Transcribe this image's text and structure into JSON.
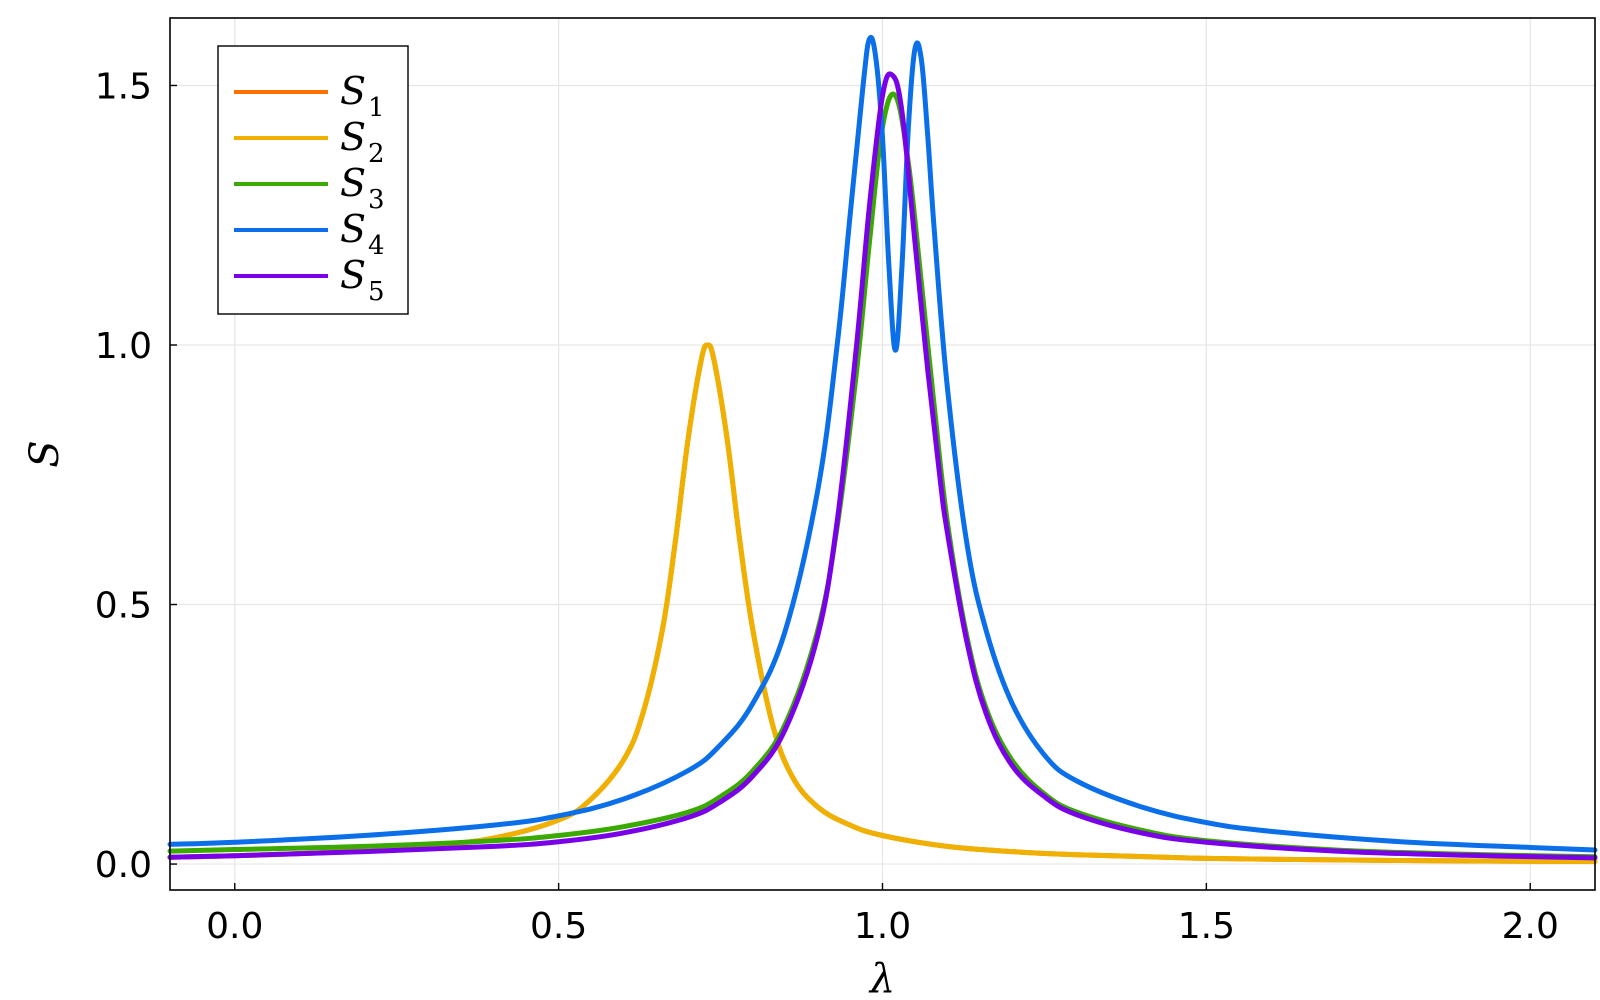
{
  "chart_data": {
    "type": "line",
    "title": "",
    "xlabel": "λ",
    "ylabel": "S",
    "xlim": [
      -0.1,
      2.1
    ],
    "ylim": [
      -0.05,
      1.63
    ],
    "xticks": [
      0.0,
      0.5,
      1.0,
      1.5,
      2.0
    ],
    "xtick_labels": [
      "0.0",
      "0.5",
      "1.0",
      "1.5",
      "2.0"
    ],
    "yticks": [
      0.0,
      0.5,
      1.0,
      1.5
    ],
    "ytick_labels": [
      "0.0",
      "0.5",
      "1.0",
      "1.5"
    ],
    "grid": true,
    "legend_position": "top-left",
    "series": [
      {
        "name": "S1",
        "label_base": "S",
        "label_sub": "1",
        "color": "#ff6f00",
        "x": [
          -0.1,
          0.0,
          0.1,
          0.2,
          0.3,
          0.4,
          0.5,
          0.55,
          0.6,
          0.63,
          0.66,
          0.68,
          0.7,
          0.72,
          0.73,
          0.74,
          0.76,
          0.78,
          0.8,
          0.83,
          0.86,
          0.9,
          0.95,
          1.0,
          1.1,
          1.2,
          1.3,
          1.5,
          1.7,
          1.9,
          2.1
        ],
        "y": [
          0.013,
          0.016,
          0.02,
          0.026,
          0.035,
          0.05,
          0.085,
          0.125,
          0.2,
          0.29,
          0.45,
          0.62,
          0.82,
          0.97,
          1.0,
          0.97,
          0.82,
          0.62,
          0.45,
          0.27,
          0.17,
          0.11,
          0.075,
          0.055,
          0.034,
          0.024,
          0.018,
          0.011,
          0.008,
          0.006,
          0.005
        ]
      },
      {
        "name": "S2",
        "label_base": "S",
        "label_sub": "2",
        "color": "#f0b000",
        "x": [
          -0.1,
          0.0,
          0.1,
          0.2,
          0.3,
          0.4,
          0.5,
          0.55,
          0.6,
          0.63,
          0.66,
          0.68,
          0.7,
          0.72,
          0.73,
          0.74,
          0.76,
          0.78,
          0.8,
          0.83,
          0.86,
          0.9,
          0.95,
          1.0,
          1.1,
          1.2,
          1.3,
          1.5,
          1.7,
          1.9,
          2.1
        ],
        "y": [
          0.013,
          0.016,
          0.02,
          0.026,
          0.035,
          0.05,
          0.085,
          0.125,
          0.2,
          0.29,
          0.45,
          0.62,
          0.82,
          0.97,
          1.0,
          0.97,
          0.82,
          0.62,
          0.45,
          0.27,
          0.17,
          0.11,
          0.075,
          0.055,
          0.034,
          0.024,
          0.018,
          0.011,
          0.008,
          0.006,
          0.005
        ]
      },
      {
        "name": "S3",
        "label_base": "S",
        "label_sub": "3",
        "color": "#3aaa00",
        "x": [
          -0.1,
          0.0,
          0.2,
          0.4,
          0.5,
          0.6,
          0.7,
          0.75,
          0.8,
          0.85,
          0.9,
          0.93,
          0.96,
          0.98,
          1.0,
          1.02,
          1.04,
          1.06,
          1.08,
          1.1,
          1.13,
          1.16,
          1.2,
          1.25,
          1.3,
          1.4,
          1.5,
          1.7,
          1.9,
          2.1
        ],
        "y": [
          0.025,
          0.028,
          0.034,
          0.045,
          0.055,
          0.072,
          0.1,
          0.13,
          0.18,
          0.27,
          0.45,
          0.65,
          0.95,
          1.2,
          1.42,
          1.48,
          1.35,
          1.12,
          0.88,
          0.66,
          0.44,
          0.3,
          0.2,
          0.135,
          0.1,
          0.065,
          0.045,
          0.027,
          0.019,
          0.014
        ]
      },
      {
        "name": "S4",
        "label_base": "S",
        "label_sub": "4",
        "color": "#0a6fe8",
        "x": [
          -0.1,
          0.0,
          0.2,
          0.4,
          0.5,
          0.6,
          0.7,
          0.75,
          0.8,
          0.85,
          0.9,
          0.93,
          0.95,
          0.97,
          0.98,
          0.99,
          1.0,
          1.01,
          1.02,
          1.03,
          1.04,
          1.05,
          1.06,
          1.07,
          1.08,
          1.1,
          1.13,
          1.16,
          1.2,
          1.25,
          1.3,
          1.4,
          1.5,
          1.6,
          1.8,
          2.0,
          2.1
        ],
        "y": [
          0.038,
          0.042,
          0.055,
          0.075,
          0.093,
          0.125,
          0.18,
          0.23,
          0.31,
          0.45,
          0.72,
          1.0,
          1.25,
          1.5,
          1.59,
          1.55,
          1.4,
          1.15,
          0.99,
          1.15,
          1.42,
          1.57,
          1.55,
          1.4,
          1.22,
          0.92,
          0.62,
          0.45,
          0.31,
          0.21,
          0.16,
          0.11,
          0.08,
          0.063,
          0.043,
          0.032,
          0.027
        ]
      },
      {
        "name": "S5",
        "label_base": "S",
        "label_sub": "5",
        "color": "#7a00e8",
        "x": [
          -0.1,
          0.0,
          0.2,
          0.4,
          0.5,
          0.6,
          0.7,
          0.75,
          0.8,
          0.85,
          0.9,
          0.93,
          0.96,
          0.98,
          1.0,
          1.015,
          1.03,
          1.05,
          1.07,
          1.09,
          1.1,
          1.13,
          1.16,
          1.2,
          1.25,
          1.3,
          1.4,
          1.5,
          1.7,
          1.9,
          2.1
        ],
        "y": [
          0.013,
          0.016,
          0.024,
          0.034,
          0.043,
          0.06,
          0.09,
          0.12,
          0.17,
          0.26,
          0.44,
          0.66,
          1.0,
          1.27,
          1.48,
          1.52,
          1.45,
          1.2,
          0.95,
          0.73,
          0.64,
          0.43,
          0.29,
          0.19,
          0.13,
          0.095,
          0.06,
          0.042,
          0.025,
          0.017,
          0.012
        ]
      }
    ]
  }
}
